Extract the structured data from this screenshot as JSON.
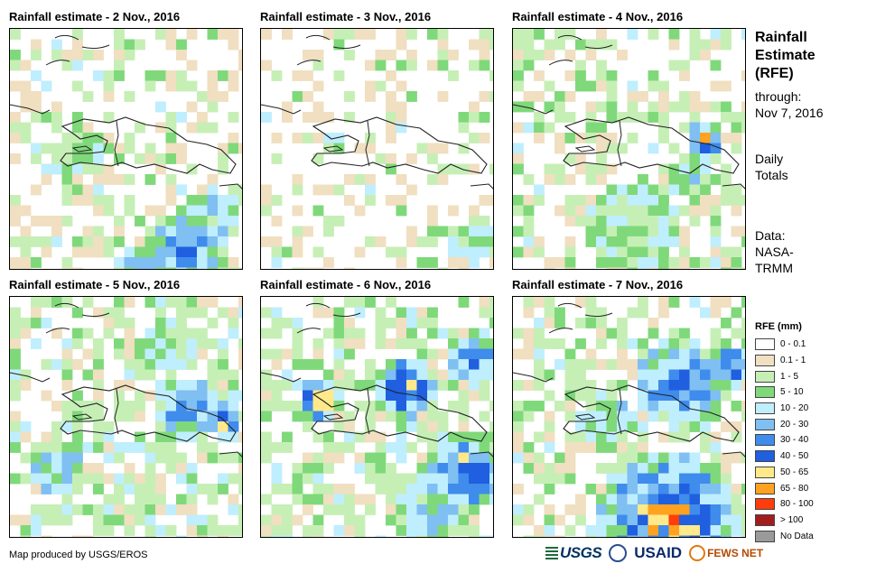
{
  "panels": [
    {
      "title": "Rainfall estimate - 2 Nov., 2016",
      "seed": 11,
      "profile": "p2"
    },
    {
      "title": "Rainfall estimate - 3 Nov., 2016",
      "seed": 23,
      "profile": "p3"
    },
    {
      "title": "Rainfall estimate - 4 Nov., 2016",
      "seed": 37,
      "profile": "p4"
    },
    {
      "title": "Rainfall estimate - 5 Nov., 2016",
      "seed": 41,
      "profile": "p5"
    },
    {
      "title": "Rainfall estimate - 6 Nov., 2016",
      "seed": 53,
      "profile": "p6"
    },
    {
      "title": "Rainfall estimate - 7 Nov., 2016",
      "seed": 67,
      "profile": "p7"
    }
  ],
  "side": {
    "title_line1": "Rainfall",
    "title_line2": "Estimate",
    "title_line3": "(RFE)",
    "through_label": "through:",
    "through_date": "Nov 7, 2016",
    "totals_line1": "Daily",
    "totals_line2": "Totals",
    "data_line1": "Data:",
    "data_line2": "NASA-",
    "data_line3": "TRMM"
  },
  "legend": {
    "title": "RFE (mm)",
    "items": [
      {
        "label": "0 - 0.1",
        "color": "#ffffff"
      },
      {
        "label": "0.1 - 1",
        "color": "#f0dfc0"
      },
      {
        "label": "1 - 5",
        "color": "#c6efb6"
      },
      {
        "label": "5 - 10",
        "color": "#7fd97a"
      },
      {
        "label": "10 - 20",
        "color": "#bfeefe"
      },
      {
        "label": "20 - 30",
        "color": "#7fbff2"
      },
      {
        "label": "30 - 40",
        "color": "#3f8cec"
      },
      {
        "label": "40 - 50",
        "color": "#1f5fe0"
      },
      {
        "label": "50 - 65",
        "color": "#ffe98a"
      },
      {
        "label": "65 - 80",
        "color": "#ffa21f"
      },
      {
        "label": "80 - 100",
        "color": "#ff3d0a"
      },
      {
        "label": "> 100",
        "color": "#a41d1d"
      },
      {
        "label": "No Data",
        "color": "#9a9a9a"
      }
    ]
  },
  "footer": {
    "credit": "Map produced by USGS/EROS"
  },
  "logos": {
    "usgs": "USGS",
    "usaid": "USAID",
    "fews": "FEWS NET"
  }
}
